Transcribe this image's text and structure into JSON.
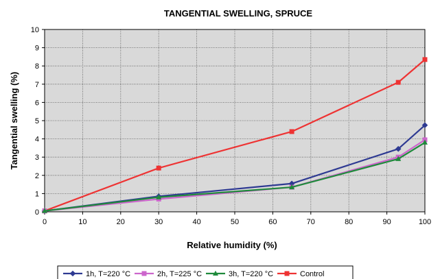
{
  "chart_data": {
    "type": "line",
    "title": "TANGENTIAL SWELLING, SPRUCE",
    "xlabel": "Relative humidity (%)",
    "ylabel": "Tangential swelling (%)",
    "xlim": [
      0,
      100
    ],
    "ylim": [
      0,
      10
    ],
    "xticks": [
      0,
      10,
      20,
      30,
      40,
      50,
      60,
      70,
      80,
      90,
      100
    ],
    "yticks": [
      0,
      1,
      2,
      3,
      4,
      5,
      6,
      7,
      8,
      9,
      10
    ],
    "grid": true,
    "legend_position": "bottom",
    "x": [
      0,
      30,
      65,
      93,
      100
    ],
    "series": [
      {
        "name": "1h, T=220 °C",
        "color": "#2e3a92",
        "marker": "diamond",
        "values": [
          0.05,
          0.85,
          1.55,
          3.45,
          4.75
        ]
      },
      {
        "name": "2h, T=225 °C",
        "color": "#cc66cc",
        "marker": "square",
        "values": [
          0.05,
          0.7,
          1.35,
          3.0,
          3.95
        ]
      },
      {
        "name": "3h, T=220 °C",
        "color": "#1f8a3b",
        "marker": "triangle",
        "values": [
          0.05,
          0.8,
          1.35,
          2.9,
          3.8
        ]
      },
      {
        "name": "Control",
        "color": "#ee3333",
        "marker": "square",
        "values": [
          0.05,
          2.4,
          4.4,
          7.1,
          8.35
        ]
      }
    ],
    "plot_background": "#d9d9d9"
  }
}
